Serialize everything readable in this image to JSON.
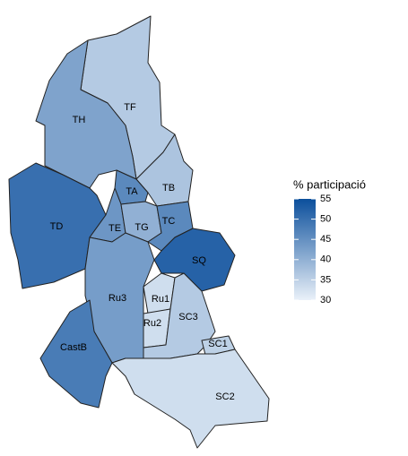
{
  "chart_data": {
    "type": "choropleth",
    "legend_title": "% participació",
    "regions": [
      "TF",
      "TH",
      "TD",
      "TB",
      "TA",
      "TE",
      "TG",
      "TC",
      "SQ",
      "Ru3",
      "Ru1",
      "Ru2",
      "SC3",
      "SC1",
      "SC2",
      "CastB"
    ],
    "values": [
      36,
      42,
      50,
      37,
      46,
      44,
      40,
      46,
      52,
      43,
      33,
      33,
      36,
      35,
      33,
      48
    ],
    "low_color": "#eaf1f9",
    "high_color": "#0b4f9c",
    "colorbar_lim": [
      30,
      55
    ],
    "colorbar_ticks": [
      30,
      35,
      40,
      45,
      50,
      55
    ]
  }
}
